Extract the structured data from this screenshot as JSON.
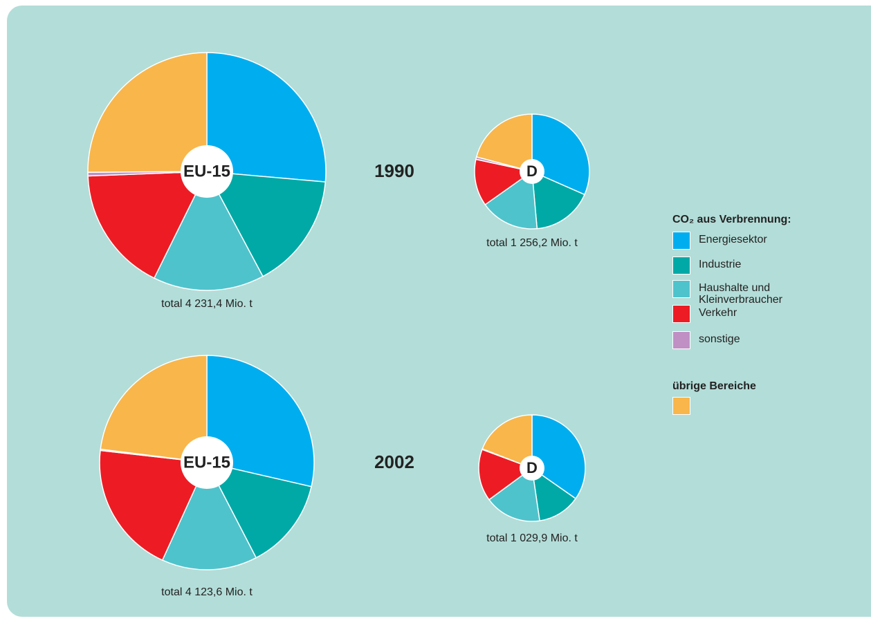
{
  "legend": {
    "title": "CO₂ aus Verbrennung:"
  },
  "chart_data": [
    {
      "type": "pie",
      "label": "EU-15",
      "year": "1990",
      "total": "total 4 231,4 Mio. t",
      "categories": [
        "Energiesektor",
        "Industrie",
        "Haushalte und Kleinverbraucher",
        "Verkehr",
        "sonstige",
        "übrige Bereiche"
      ],
      "colors": [
        "#00aeef",
        "#00a9a6",
        "#4fc3cc",
        "#ed1c24",
        "#c08fc4",
        "#f9b64b"
      ],
      "values": [
        26.4,
        15.8,
        15.1,
        17.1,
        0.5,
        25.1
      ]
    },
    {
      "type": "pie",
      "label": "D",
      "total": "total 1 256,2 Mio. t",
      "values": [
        31.6,
        17.0,
        16.6,
        13.2,
        0.7,
        20.9
      ]
    },
    {
      "type": "pie",
      "label": "EU-15",
      "year": "2002",
      "total": "total 4 123,6 Mio. t",
      "values": [
        28.6,
        13.8,
        14.4,
        20.0,
        0.2,
        23.0
      ]
    },
    {
      "type": "pie",
      "label": "D",
      "total": "total 1 029,9 Mio. t",
      "values": [
        34.7,
        13.0,
        17.2,
        15.8,
        0.2,
        19.1
      ]
    }
  ]
}
